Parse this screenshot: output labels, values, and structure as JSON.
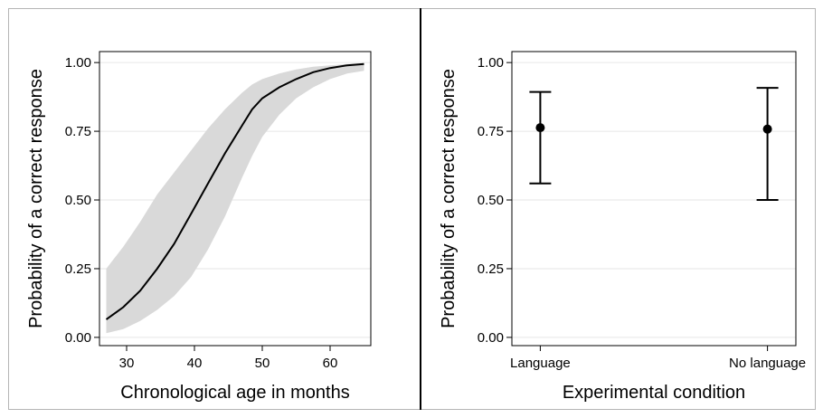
{
  "chart_data": [
    {
      "type": "line",
      "xlabel": "Chronological age in months",
      "ylabel": "Probability of a correct response",
      "xlim": [
        26,
        66
      ],
      "ylim": [
        -0.03,
        1.04
      ],
      "xticks": [
        30,
        40,
        50,
        60
      ],
      "xtick_labels": [
        "30",
        "40",
        "50",
        "60"
      ],
      "yticks": [
        0,
        0.25,
        0.5,
        0.75,
        1
      ],
      "ytick_labels": [
        "0.00",
        "0.25",
        "0.50",
        "0.75",
        "1.00"
      ],
      "grid": "horizontal",
      "series": [
        {
          "x": [
            27,
            29.5,
            32,
            34.5,
            37,
            39.5,
            42,
            44.5,
            47,
            48.5,
            50,
            52.5,
            55,
            57.5,
            60,
            62.5,
            65
          ],
          "y": [
            0.065,
            0.11,
            0.17,
            0.25,
            0.34,
            0.45,
            0.56,
            0.67,
            0.77,
            0.83,
            0.87,
            0.91,
            0.94,
            0.965,
            0.98,
            0.99,
            0.995
          ],
          "lower": [
            0.015,
            0.03,
            0.06,
            0.1,
            0.15,
            0.22,
            0.32,
            0.44,
            0.58,
            0.66,
            0.73,
            0.81,
            0.87,
            0.91,
            0.94,
            0.96,
            0.97
          ],
          "upper": [
            0.25,
            0.33,
            0.42,
            0.52,
            0.6,
            0.68,
            0.76,
            0.83,
            0.89,
            0.92,
            0.94,
            0.96,
            0.975,
            0.985,
            0.99,
            0.995,
            0.998
          ],
          "color": "#000000",
          "band_color": "#d9d9d9"
        }
      ]
    },
    {
      "type": "scatter",
      "xlabel": "Experimental condition",
      "ylabel": "Probability of a correct response",
      "categories": [
        "Language",
        "No language"
      ],
      "ylim": [
        -0.03,
        1.04
      ],
      "yticks": [
        0,
        0.25,
        0.5,
        0.75,
        1
      ],
      "ytick_labels": [
        "0.00",
        "0.25",
        "0.50",
        "0.75",
        "1.00"
      ],
      "grid": "horizontal",
      "series": [
        {
          "values": [
            0.763,
            0.758
          ],
          "lower": [
            0.56,
            0.5
          ],
          "upper": [
            0.893,
            0.908
          ],
          "color": "#000000"
        }
      ]
    }
  ]
}
